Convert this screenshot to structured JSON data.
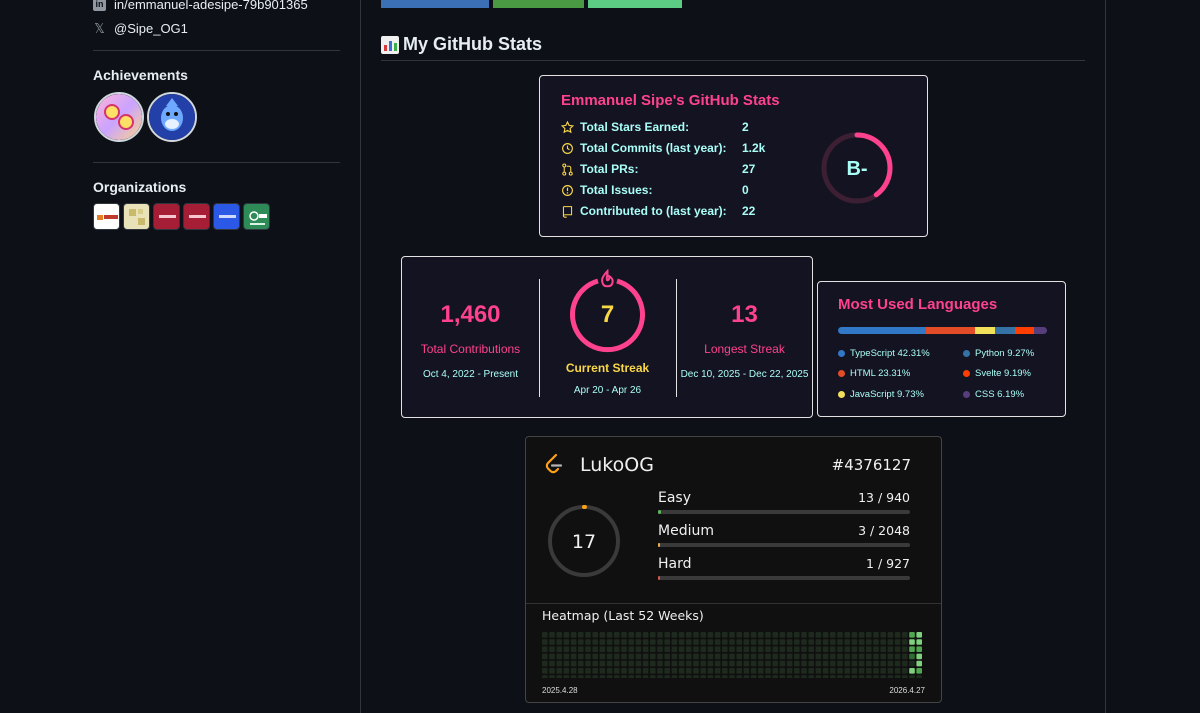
{
  "sidebar": {
    "linkedin": "in/emmanuel-adesipe-79b901365",
    "twitter": "@Sipe_OG1",
    "achievements_title": "Achievements",
    "organizations_title": "Organizations"
  },
  "header": {
    "title": "My GitHub Stats"
  },
  "stats": {
    "title": "Emmanuel Sipe's GitHub Stats",
    "rows": [
      {
        "label": "Total Stars Earned:",
        "value": "2",
        "icon": "star-icon"
      },
      {
        "label": "Total Commits (last year):",
        "value": "1.2k",
        "icon": "history-icon"
      },
      {
        "label": "Total PRs:",
        "value": "27",
        "icon": "pull-request-icon"
      },
      {
        "label": "Total Issues:",
        "value": "0",
        "icon": "issue-icon"
      },
      {
        "label": "Contributed to (last year):",
        "value": "22",
        "icon": "repo-icon"
      }
    ],
    "rank": "B-",
    "rank_fraction": 0.4
  },
  "streak": {
    "total": "1,460",
    "total_label": "Total Contributions",
    "total_range": "Oct 4, 2022 - Present",
    "current": "7",
    "current_label": "Current Streak",
    "current_range": "Apr 20 - Apr 26",
    "longest": "13",
    "longest_label": "Longest Streak",
    "longest_range": "Dec 10, 2025 - Dec 22, 2025"
  },
  "languages": {
    "title": "Most Used Languages",
    "items": [
      {
        "name": "TypeScript",
        "pct": 42.31,
        "label": "TypeScript 42.31%",
        "color": "#3178c6"
      },
      {
        "name": "HTML",
        "pct": 23.31,
        "label": "HTML 23.31%",
        "color": "#e34c26"
      },
      {
        "name": "JavaScript",
        "pct": 9.73,
        "label": "JavaScript 9.73%",
        "color": "#f1e05a"
      },
      {
        "name": "Python",
        "pct": 9.27,
        "label": "Python 9.27%",
        "color": "#3572A5"
      },
      {
        "name": "Svelte",
        "pct": 9.19,
        "label": "Svelte 9.19%",
        "color": "#ff3e00"
      },
      {
        "name": "CSS",
        "pct": 6.19,
        "label": "CSS 6.19%",
        "color": "#563d7c"
      }
    ]
  },
  "leetcode": {
    "username": "LukoOG",
    "rank": "#4376127",
    "solved": "17",
    "solved_fraction": 0.0045,
    "difficulties": [
      {
        "name": "Easy",
        "solved": 13,
        "total": 940,
        "count": "13 / 940",
        "color": "#5cb85c"
      },
      {
        "name": "Medium",
        "solved": 3,
        "total": 2048,
        "count": "3 / 2048",
        "color": "#f0ad4e"
      },
      {
        "name": "Hard",
        "solved": 1,
        "total": 927,
        "count": "1 / 927",
        "color": "#d9534f"
      }
    ],
    "heatmap_title": "Heatmap (Last 52 Weeks)",
    "start_date": "2025.4.28",
    "end_date": "2026.4.27"
  }
}
